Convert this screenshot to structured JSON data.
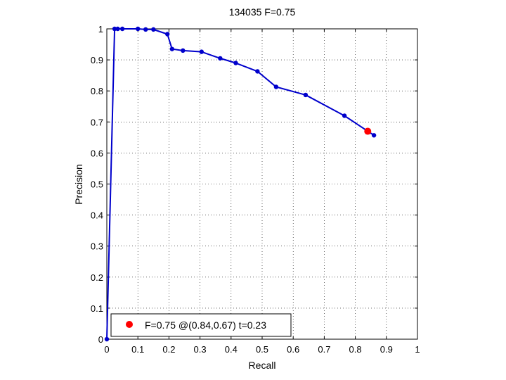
{
  "chart_data": {
    "type": "line",
    "title": "134035 F=0.75",
    "xlabel": "Recall",
    "ylabel": "Precision",
    "xlim": [
      0,
      1
    ],
    "ylim": [
      0,
      1
    ],
    "grid": true,
    "x_ticks": [
      "0",
      "0.1",
      "0.2",
      "0.3",
      "0.4",
      "0.5",
      "0.6",
      "0.7",
      "0.8",
      "0.9",
      "1"
    ],
    "y_ticks": [
      "0",
      "0.1",
      "0.2",
      "0.3",
      "0.4",
      "0.5",
      "0.6",
      "0.7",
      "0.8",
      "0.9",
      "1"
    ],
    "series": [
      {
        "color": "#0000cc",
        "x": [
          0.0,
          0.025,
          0.035,
          0.05,
          0.1,
          0.125,
          0.15,
          0.195,
          0.21,
          0.245,
          0.305,
          0.365,
          0.415,
          0.485,
          0.545,
          0.64,
          0.765,
          0.86
        ],
        "y": [
          0.0,
          1.0,
          1.0,
          1.0,
          1.0,
          0.998,
          0.998,
          0.983,
          0.935,
          0.93,
          0.926,
          0.905,
          0.89,
          0.863,
          0.813,
          0.787,
          0.72,
          0.657
        ]
      }
    ],
    "highlight": {
      "x": 0.84,
      "y": 0.67,
      "color": "#ff0000"
    },
    "legend": {
      "placement": "bottom-left",
      "label": "F=0.75 @(0.84,0.67) t=0.23"
    }
  }
}
